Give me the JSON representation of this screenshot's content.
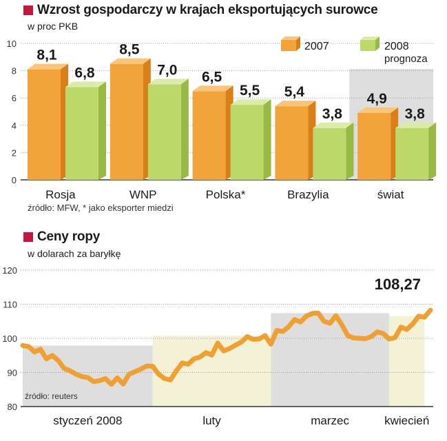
{
  "colors": {
    "accent_square": "#c5163e",
    "bar_2007": "#f2a33a",
    "bar_2007_top": "#f9c57a",
    "bar_2007_side": "#d97f17",
    "bar_2008": "#bcd76a",
    "bar_2008_top": "#dcebaa",
    "bar_2008_side": "#98b944",
    "line": "#f0a030",
    "shade_grey": "#dedede",
    "shade_cream": "#f3f2d6"
  },
  "chart1": {
    "title": "Wzrost gospodarczy w krajach eksportujących surowce",
    "subtitle": "w proc PKB",
    "source": "źródło: MFW, * jako eksporter miedzi",
    "legend": {
      "s2007": "2007",
      "s2008_line1": "2008",
      "s2008_line2": "prognoza"
    }
  },
  "chart2": {
    "title": "Ceny ropy",
    "subtitle": "w dolarach za baryłkę",
    "source": "źródło: reuters",
    "last_value_label": "108,27"
  },
  "chart_data": [
    {
      "type": "bar",
      "title": "Wzrost gospodarczy w krajach eksportujących surowce",
      "subtitle": "w proc PKB",
      "categories": [
        "Rosja",
        "WNP",
        "Polska*",
        "Brazylia",
        "świat"
      ],
      "series": [
        {
          "name": "2007",
          "values": [
            8.1,
            8.5,
            6.5,
            5.4,
            4.9
          ],
          "labels": [
            "8,1",
            "8,5",
            "6,5",
            "5,4",
            "4,9"
          ]
        },
        {
          "name": "2008 prognoza",
          "values": [
            6.8,
            7.0,
            5.5,
            3.8,
            3.8
          ],
          "labels": [
            "6,8",
            "7,0",
            "5,5",
            "3,8",
            "3,8"
          ]
        }
      ],
      "ylim": [
        0,
        10
      ],
      "yticks": [
        0,
        2,
        4,
        6,
        8,
        10
      ],
      "grid": true,
      "highlight_category": "świat",
      "legend_position": "top-right"
    },
    {
      "type": "line",
      "title": "Ceny ropy",
      "subtitle": "w dolarach za baryłkę",
      "ylim": [
        80,
        120
      ],
      "yticks": [
        80,
        90,
        100,
        110,
        120
      ],
      "grid": true,
      "x_labels": [
        "styczeń 2008",
        "luty",
        "marzec",
        "kwiecień"
      ],
      "period_bands": [
        {
          "label": "styczeń 2008",
          "start": 0,
          "end": 22,
          "shade": "grey"
        },
        {
          "label": "luty",
          "start": 22,
          "end": 42,
          "shade": "cream"
        },
        {
          "label": "marzec",
          "start": 42,
          "end": 62,
          "shade": "grey"
        },
        {
          "label": "kwiecień",
          "start": 62,
          "end": 68,
          "shade": "cream"
        }
      ],
      "series": [
        {
          "name": "",
          "values": [
            97.9,
            97.6,
            96.0,
            96.8,
            94.0,
            95.0,
            93.5,
            91.2,
            90.5,
            89.5,
            88.8,
            88.5,
            87.3,
            87.6,
            88.2,
            86.5,
            88.4,
            86.6,
            89.5,
            90.2,
            91.0,
            91.9,
            91.8,
            89.5,
            88.2,
            87.8,
            90.5,
            92.8,
            92.4,
            94.0,
            94.5,
            95.8,
            95.1,
            98.6,
            96.3,
            97.0,
            98.0,
            98.9,
            100.5,
            99.7,
            99.8,
            100.8,
            98.3,
            102.3,
            102.0,
            103.4,
            105.5,
            104.8,
            106.5,
            107.3,
            107.4,
            105.0,
            104.4,
            106.6,
            104.0,
            100.8,
            100.1,
            100.0,
            99.9,
            100.5,
            101.9,
            101.4,
            99.8,
            100.2,
            103.3,
            102.6,
            104.2,
            106.5,
            106.2,
            108.27
          ]
        }
      ],
      "last_value": 108.27
    }
  ]
}
